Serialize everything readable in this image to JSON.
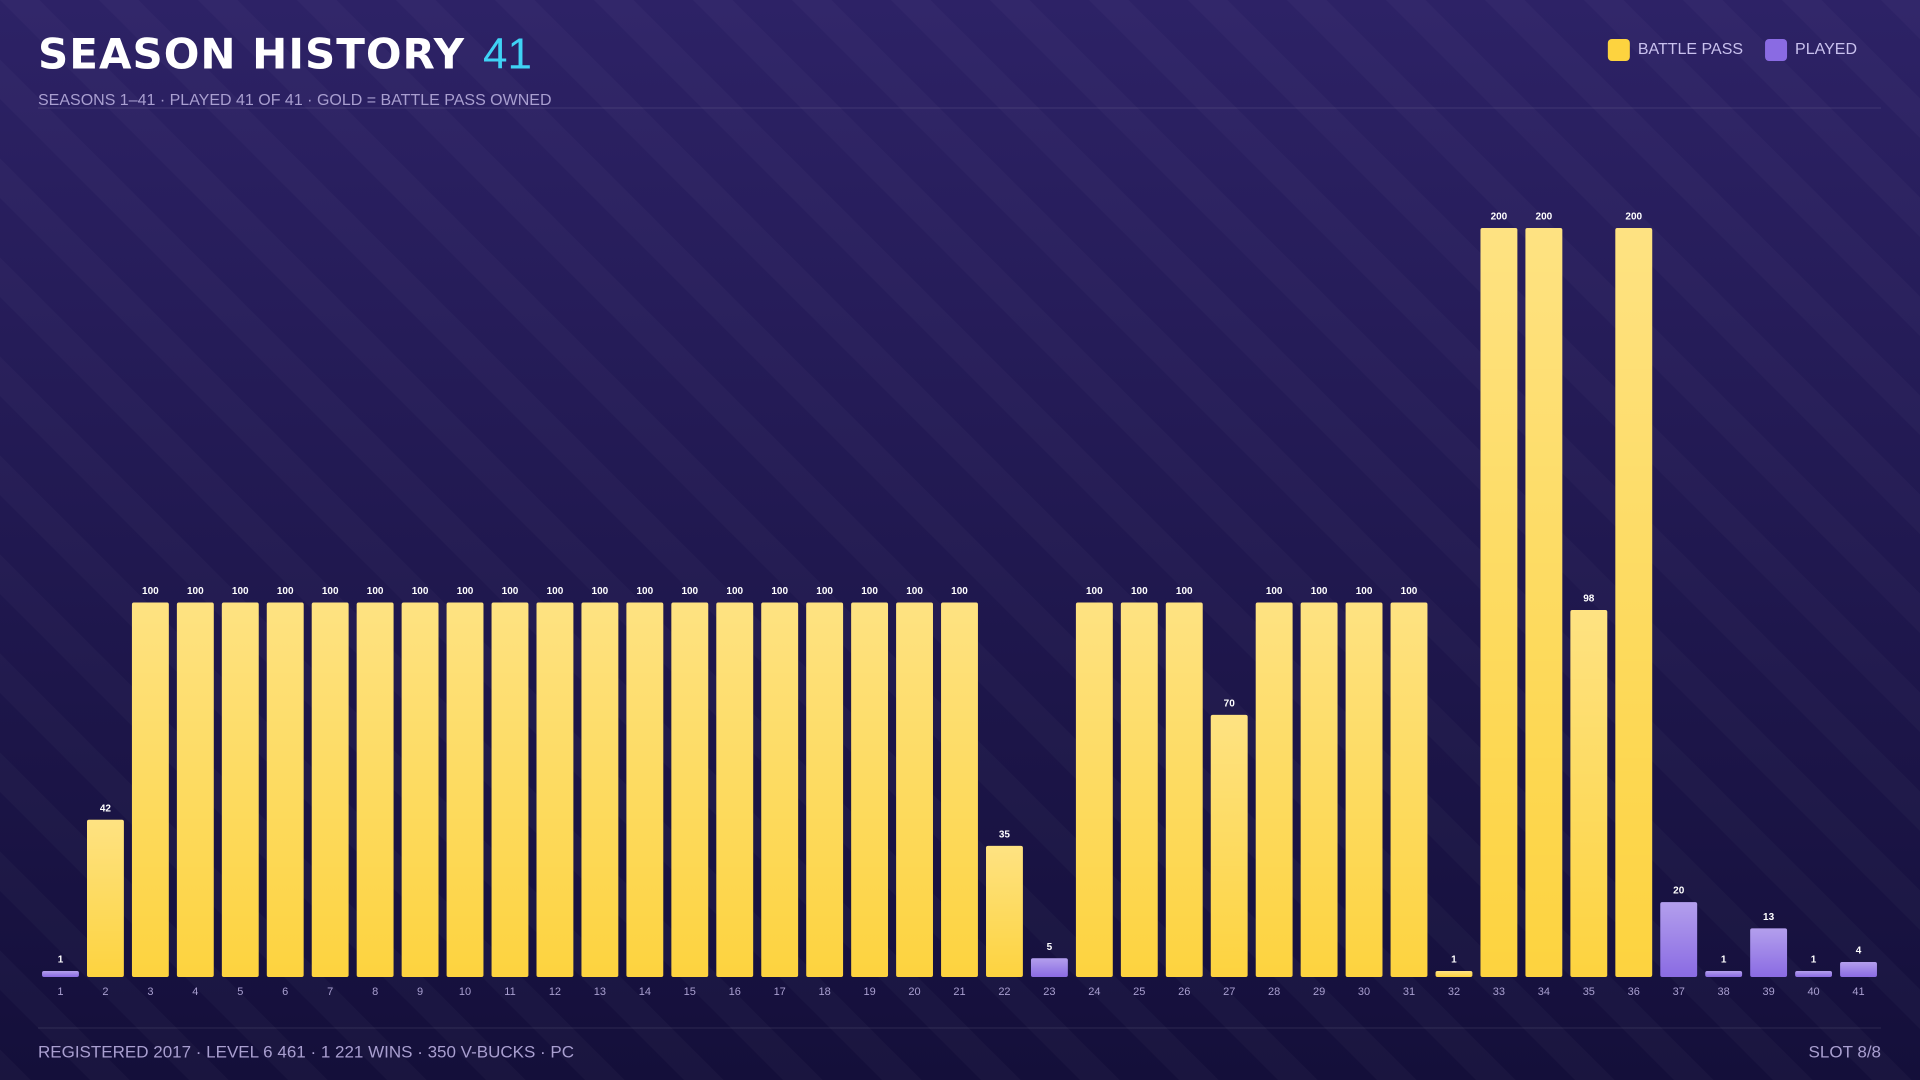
{
  "header": {
    "title": "SEASON HISTORY",
    "count": "41",
    "subtitle": "SEASONS 1–41 · PLAYED 41 OF 41 · GOLD = BATTLE PASS OWNED"
  },
  "footer": {
    "stats": "REGISTERED 2017 · LEVEL 6 461 · 1 221 WINS · 350 V-BUCKS · PC",
    "slot": "SLOT 8/8"
  },
  "chart_data": {
    "type": "bar",
    "categories": [
      "1",
      "2",
      "3",
      "4",
      "5",
      "6",
      "7",
      "8",
      "9",
      "10",
      "11",
      "12",
      "13",
      "14",
      "15",
      "16",
      "17",
      "18",
      "19",
      "20",
      "21",
      "22",
      "23",
      "24",
      "25",
      "26",
      "27",
      "28",
      "29",
      "30",
      "31",
      "32",
      "33",
      "34",
      "35",
      "36",
      "37",
      "38",
      "39",
      "40",
      "41"
    ],
    "series": [
      {
        "name": "BATTLE PASS",
        "color": "#fdd33f",
        "values": [
          null,
          42,
          100,
          100,
          100,
          100,
          100,
          100,
          100,
          100,
          100,
          100,
          100,
          100,
          100,
          100,
          100,
          100,
          100,
          100,
          100,
          35,
          null,
          100,
          100,
          100,
          70,
          100,
          100,
          100,
          100,
          1,
          200,
          200,
          98,
          200,
          null,
          null,
          null,
          null,
          null
        ]
      },
      {
        "name": "PLAYED",
        "color": "#8a6be3",
        "values": [
          1,
          null,
          null,
          null,
          null,
          null,
          null,
          null,
          null,
          null,
          null,
          null,
          null,
          null,
          null,
          null,
          null,
          null,
          null,
          null,
          null,
          null,
          5,
          null,
          null,
          null,
          null,
          null,
          null,
          null,
          null,
          null,
          null,
          null,
          null,
          null,
          20,
          1,
          13,
          1,
          4
        ]
      }
    ],
    "ylim": [
      0,
      200
    ]
  }
}
